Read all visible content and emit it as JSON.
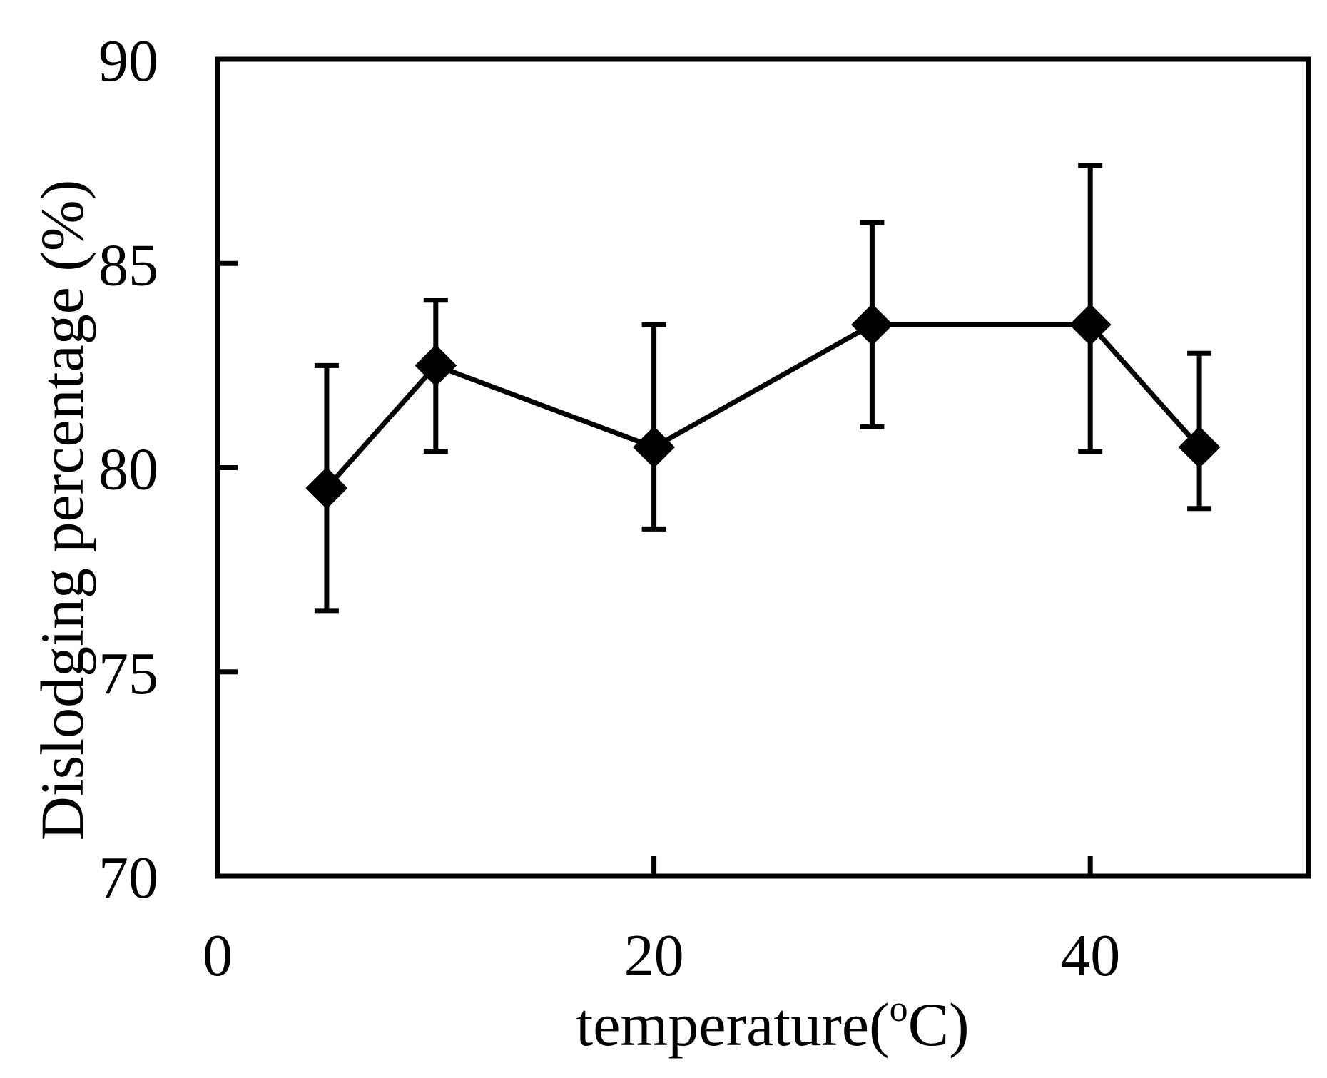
{
  "chart_data": {
    "type": "line",
    "title": "",
    "xlabel": "temperature(",
    "xlabel_superscript": "o",
    "xlabel_suffix": "C)",
    "ylabel": "Dislodging percentage (%)",
    "xlim": [
      0,
      50
    ],
    "ylim": [
      70,
      90
    ],
    "xticks": [
      0,
      20,
      40
    ],
    "xtick_labels": [
      "0",
      "20",
      "40"
    ],
    "yticks": [
      70,
      75,
      80,
      85,
      90
    ],
    "ytick_labels": [
      "70",
      "75",
      "80",
      "85",
      "90"
    ],
    "grid": false,
    "legend": "none",
    "marker": "diamond",
    "color": "#000000",
    "series": [
      {
        "name": "Dislodging percentage",
        "x": [
          5,
          10,
          20,
          30,
          40,
          45
        ],
        "y": [
          79.5,
          82.5,
          80.5,
          83.5,
          83.5,
          80.5
        ],
        "yerr_low": [
          76.5,
          80.4,
          78.5,
          81.0,
          80.4,
          79.0
        ],
        "yerr_high": [
          82.5,
          84.1,
          83.5,
          86.0,
          87.4,
          82.8
        ]
      }
    ]
  }
}
